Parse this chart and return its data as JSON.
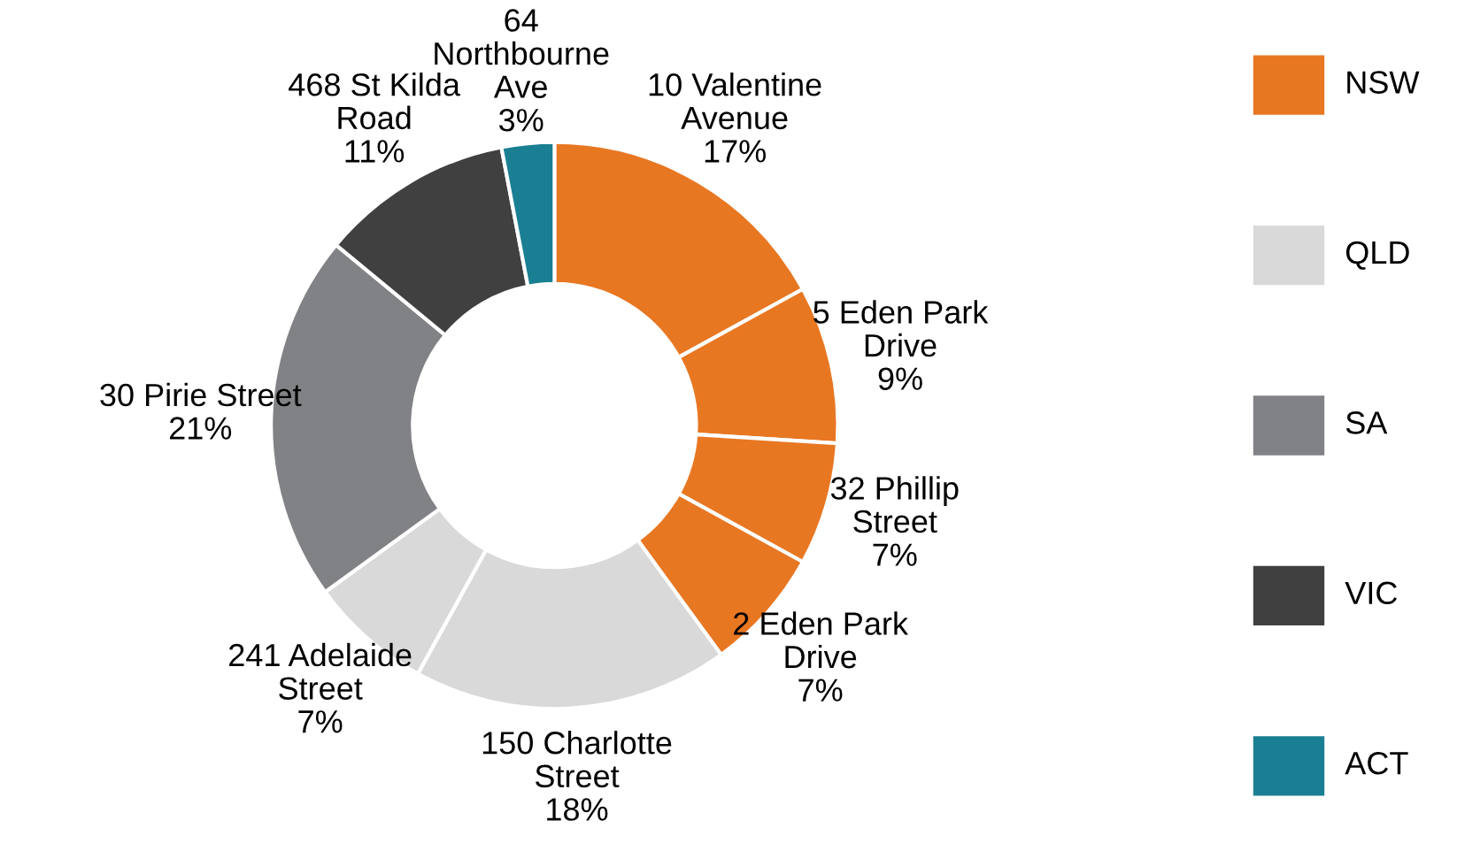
{
  "chart_data": [
    {
      "type": "donut",
      "categories": [
        "10 Valentine\nAvenue",
        "5 Eden Park\nDrive",
        "32 Phillip\nStreet",
        "2 Eden Park\nDrive",
        "150 Charlotte\nStreet",
        "241 Adelaide\nStreet",
        "30 Pirie Street",
        "468 St Kilda\nRoad",
        "64\nNorthbourne\nAve"
      ],
      "values": [
        17,
        9,
        7,
        7,
        18,
        7,
        21,
        11,
        3
      ],
      "value_labels": [
        "17%",
        "9%",
        "7%",
        "7%",
        "18%",
        "7%",
        "21%",
        "11%",
        "3%"
      ],
      "colors": [
        "#e87722",
        "#e87722",
        "#e87722",
        "#e87722",
        "#d9d9d9",
        "#d9d9d9",
        "#808285",
        "#404041",
        "#1a7f92"
      ]
    },
    {
      "type": "other",
      "categories": [
        "NSW",
        "QLD",
        "SA",
        "VIC",
        "ACT"
      ],
      "colors": [
        "#e87722",
        "#d9d9d9",
        "#808285",
        "#404041",
        "#1a7f92"
      ]
    }
  ]
}
